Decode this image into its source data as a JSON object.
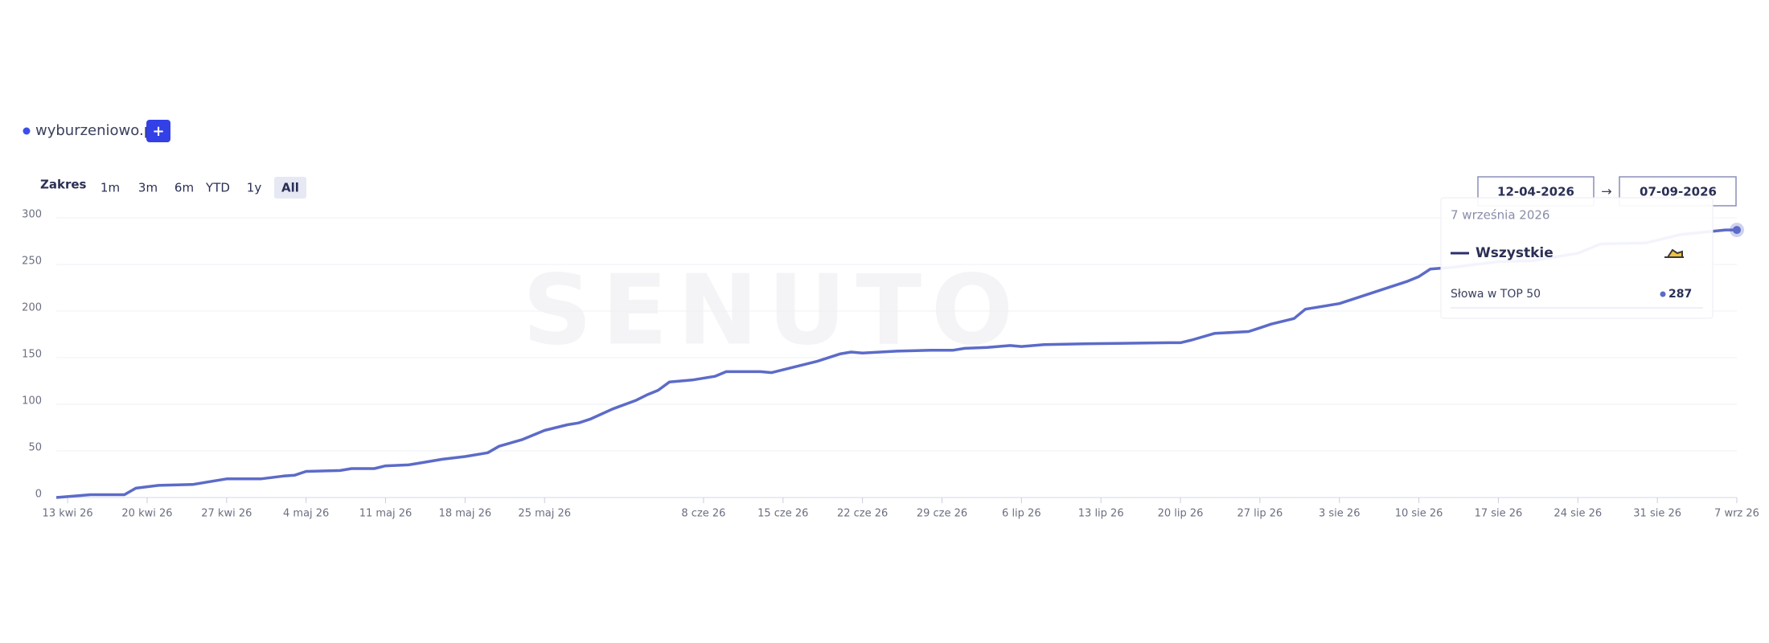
{
  "ui": {
    "domain": "wyburzeniowo.pl",
    "add_button": "+",
    "range_label": "Zakres",
    "range_buttons": [
      "1m",
      "3m",
      "6m",
      "YTD",
      "1y",
      "All"
    ],
    "date_from": "12-04-2026",
    "date_arrow": "→",
    "date_to": "07-09-2026",
    "watermark": "SENUTO",
    "tooltip": {
      "date": "7 września 2026",
      "metric": "Słowa w TOP 50"
    }
  },
  "chart_data": {
    "type": "line",
    "x": [
      "2026-04-12",
      "2026-04-15",
      "2026-04-18",
      "2026-04-19",
      "2026-04-21",
      "2026-04-24",
      "2026-04-27",
      "2026-04-30",
      "2026-05-02",
      "2026-05-03",
      "2026-05-04",
      "2026-05-07",
      "2026-05-08",
      "2026-05-10",
      "2026-05-11",
      "2026-05-13",
      "2026-05-14",
      "2026-05-16",
      "2026-05-18",
      "2026-05-20",
      "2026-05-21",
      "2026-05-23",
      "2026-05-25",
      "2026-05-27",
      "2026-05-28",
      "2026-05-29",
      "2026-05-31",
      "2026-06-02",
      "2026-06-03",
      "2026-06-04",
      "2026-06-05",
      "2026-06-07",
      "2026-06-09",
      "2026-06-10",
      "2026-06-13",
      "2026-06-14",
      "2026-06-16",
      "2026-06-18",
      "2026-06-20",
      "2026-06-21",
      "2026-06-22",
      "2026-06-25",
      "2026-06-28",
      "2026-06-30",
      "2026-07-01",
      "2026-07-03",
      "2026-07-05",
      "2026-07-06",
      "2026-07-08",
      "2026-07-12",
      "2026-07-19",
      "2026-07-20",
      "2026-07-21",
      "2026-07-23",
      "2026-07-26",
      "2026-07-27",
      "2026-07-28",
      "2026-07-30",
      "2026-07-31",
      "2026-08-03",
      "2026-08-04",
      "2026-08-07",
      "2026-08-09",
      "2026-08-10",
      "2026-08-11",
      "2026-08-13",
      "2026-08-17",
      "2026-08-20",
      "2026-08-24",
      "2026-08-26",
      "2026-08-30",
      "2026-09-02",
      "2026-09-06",
      "2026-09-07"
    ],
    "series": [
      {
        "name": "Wszystkie",
        "color": "#5c6bc8",
        "values": [
          0,
          3,
          3,
          10,
          13,
          14,
          20,
          20,
          23,
          24,
          28,
          29,
          31,
          31,
          34,
          35,
          37,
          41,
          44,
          48,
          55,
          62,
          72,
          78,
          80,
          84,
          95,
          104,
          110,
          115,
          124,
          126,
          130,
          135,
          135,
          134,
          140,
          146,
          154,
          156,
          155,
          157,
          158,
          158,
          160,
          161,
          163,
          162,
          164,
          165,
          166,
          166,
          169,
          176,
          178,
          182,
          186,
          192,
          202,
          208,
          212,
          224,
          232,
          237,
          245,
          247,
          253,
          254,
          262,
          272,
          273,
          282,
          287,
          287
        ]
      }
    ],
    "xlim": [
      "2026-04-12",
      "2026-09-07"
    ],
    "xticks": [
      {
        "value": "2026-04-13",
        "label": "13 kwi 26"
      },
      {
        "value": "2026-04-20",
        "label": "20 kwi 26"
      },
      {
        "value": "2026-04-27",
        "label": "27 kwi 26"
      },
      {
        "value": "2026-05-04",
        "label": "4 maj 26"
      },
      {
        "value": "2026-05-11",
        "label": "11 maj 26"
      },
      {
        "value": "2026-05-18",
        "label": "18 maj 26"
      },
      {
        "value": "2026-05-25",
        "label": "25 maj 26"
      },
      {
        "value": "2026-06-08",
        "label": "8 cze 26"
      },
      {
        "value": "2026-06-15",
        "label": "15 cze 26"
      },
      {
        "value": "2026-06-22",
        "label": "22 cze 26"
      },
      {
        "value": "2026-06-29",
        "label": "29 cze 26"
      },
      {
        "value": "2026-07-06",
        "label": "6 lip 26"
      },
      {
        "value": "2026-07-13",
        "label": "13 lip 26"
      },
      {
        "value": "2026-07-20",
        "label": "20 lip 26"
      },
      {
        "value": "2026-07-27",
        "label": "27 lip 26"
      },
      {
        "value": "2026-08-03",
        "label": "3 sie 26"
      },
      {
        "value": "2026-08-10",
        "label": "10 sie 26"
      },
      {
        "value": "2026-08-17",
        "label": "17 sie 26"
      },
      {
        "value": "2026-08-24",
        "label": "24 sie 26"
      },
      {
        "value": "2026-08-31",
        "label": "31 sie 26"
      },
      {
        "value": "2026-09-07",
        "label": "7 wrz 26"
      }
    ],
    "ylim": [
      0,
      300
    ],
    "yticks": [
      0,
      50,
      100,
      150,
      200,
      250,
      300
    ],
    "grid": true
  }
}
